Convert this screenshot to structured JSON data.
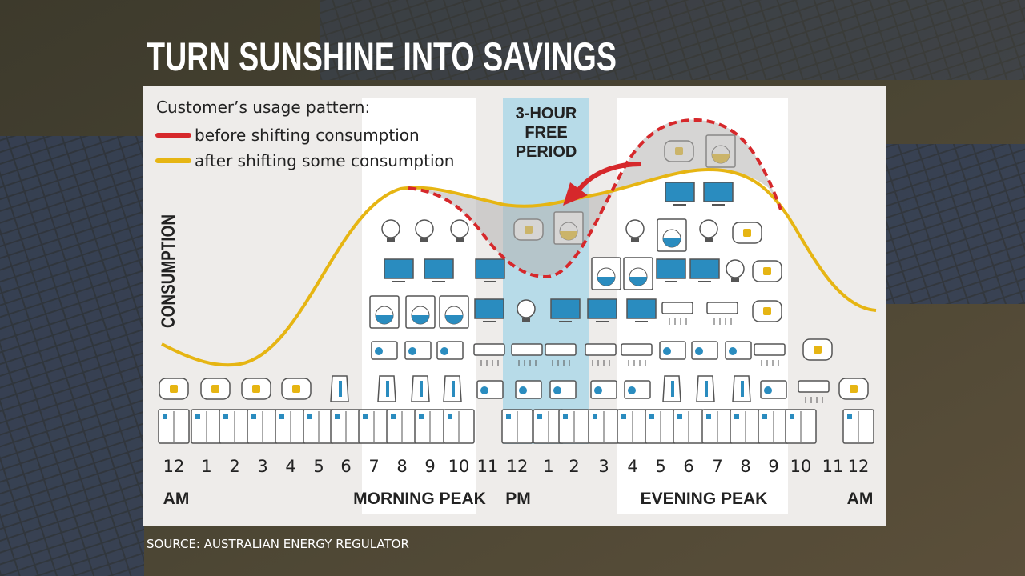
{
  "header": {
    "title": "TURN SUNSHINE INTO SAVINGS"
  },
  "legend": {
    "title": "Customer’s usage pattern:",
    "items": [
      "before shifting consumption",
      "after shifting some consumption"
    ]
  },
  "free_period": {
    "lines": [
      "3-HOUR",
      "FREE",
      "PERIOD"
    ]
  },
  "axis_label": "CONSUMPTION",
  "hours": [
    "12",
    "1",
    "2",
    "3",
    "4",
    "5",
    "6",
    "7",
    "8",
    "9",
    "10",
    "11",
    "12",
    "1",
    "2",
    "3",
    "4",
    "5",
    "6",
    "7",
    "8",
    "9",
    "10",
    "11",
    "12"
  ],
  "periods": [
    "AM",
    "MORNING PEAK",
    "PM",
    "EVENING PEAK",
    "AM"
  ],
  "source": "SOURCE: AUSTRALIAN ENERGY REGULATOR"
}
